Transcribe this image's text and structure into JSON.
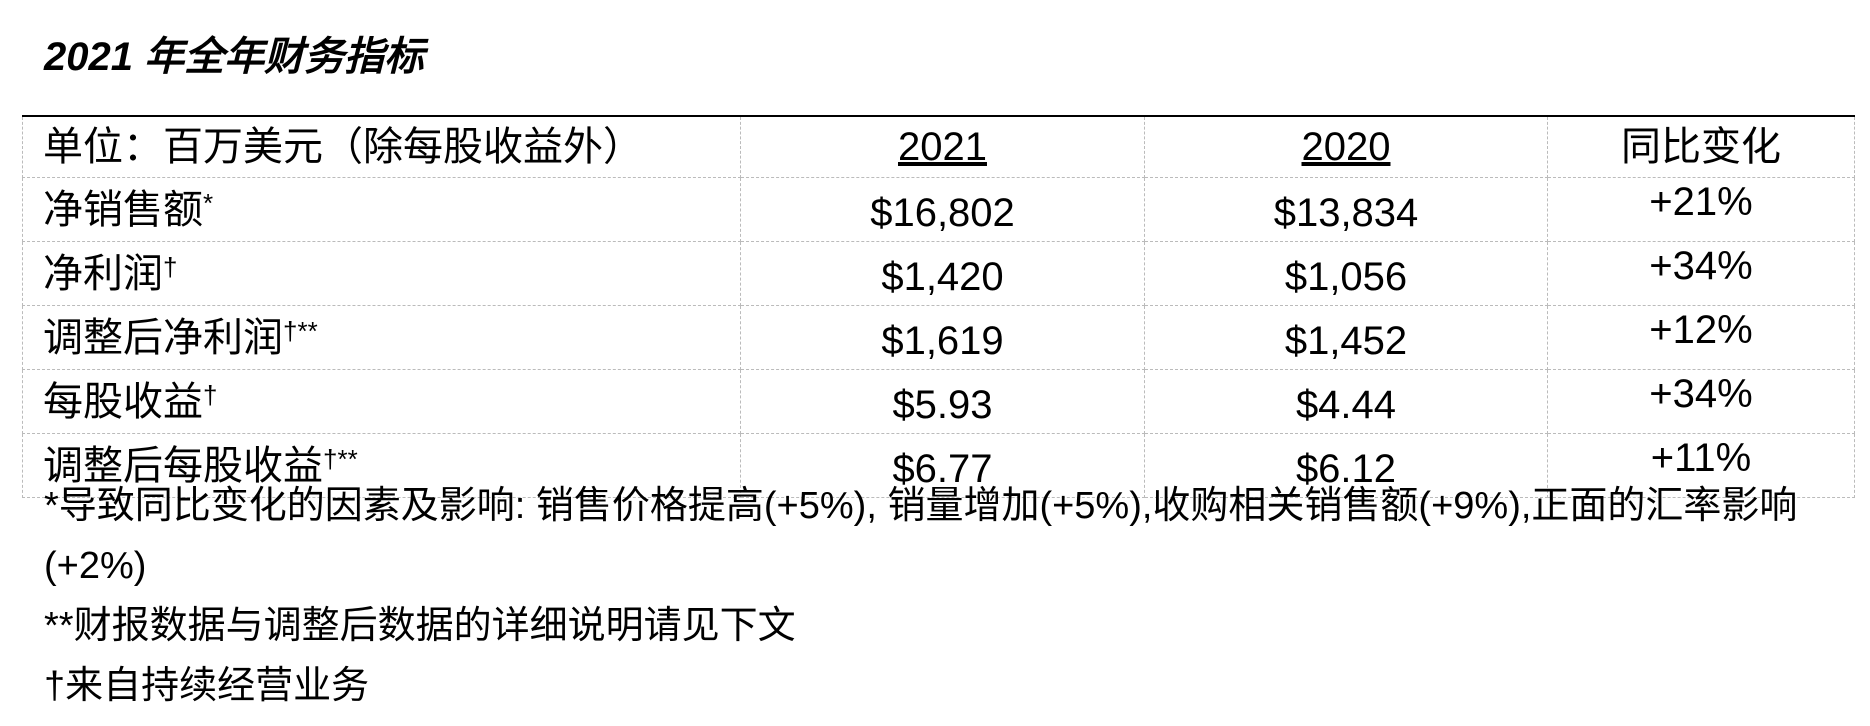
{
  "title": "2021 年全年财务指标",
  "table": {
    "headers": [
      "单位：百万美元（除每股收益外）",
      "2021",
      "2020",
      "同比变化"
    ],
    "rows": [
      {
        "label": "净销售额",
        "mark": "*",
        "v2021": "$16,802",
        "v2020": "$13,834",
        "change": "+21%"
      },
      {
        "label": "净利润",
        "mark": "†",
        "v2021": "$1,420",
        "v2020": "$1,056",
        "change": "+34%"
      },
      {
        "label": "调整后净利润",
        "mark": "†**",
        "v2021": "$1,619",
        "v2020": "$1,452",
        "change": "+12%"
      },
      {
        "label": "每股收益",
        "mark": "†",
        "v2021": "$5.93",
        "v2020": "$4.44",
        "change": "+34%"
      },
      {
        "label": "调整后每股收益",
        "mark": "†**",
        "v2021": "$6.77",
        "v2020": "$6.12",
        "change": "+11%"
      }
    ]
  },
  "footnotes": [
    "*导致同比变化的因素及影响: 销售价格提高(+5%), 销量增加(+5%),收购相关销售额(+9%),正面的汇率影响(+2%)",
    "**财报数据与调整后数据的详细说明请见下文",
    "†来自持续经营业务"
  ]
}
